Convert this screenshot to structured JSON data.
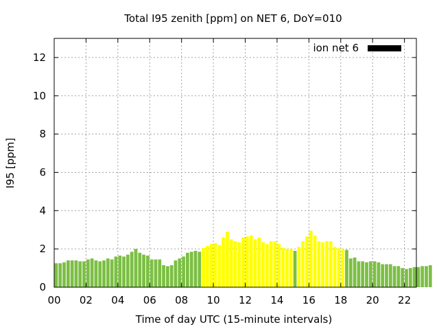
{
  "chart_data": {
    "type": "bar",
    "title": "Total I95 zenith [ppm] on NET 6, DoY=010",
    "xlabel": "Time of day UTC (15-minute intervals)",
    "ylabel": "I95 [ppm]",
    "xlim": [
      0,
      22.75
    ],
    "ylim": [
      0,
      13
    ],
    "x_ticks": [
      "00",
      "02",
      "04",
      "06",
      "08",
      "10",
      "12",
      "14",
      "16",
      "18",
      "20",
      "22"
    ],
    "y_ticks": [
      "0",
      "2",
      "4",
      "6",
      "8",
      "10",
      "12"
    ],
    "grid": true,
    "legend": {
      "position": "top-right",
      "label": "ion net 6",
      "color": "#000000"
    },
    "colors": {
      "green": "#7cbf44",
      "yellow": "#ffff00"
    },
    "series": [
      {
        "values": [
          1.25,
          1.25,
          1.3,
          1.4,
          1.4,
          1.4,
          1.35,
          1.35,
          1.45,
          1.5,
          1.4,
          1.35,
          1.4,
          1.5,
          1.45,
          1.6,
          1.65,
          1.6,
          1.7,
          1.85,
          2.0,
          1.8,
          1.7,
          1.65,
          1.45,
          1.45,
          1.45,
          1.15,
          1.1,
          1.15,
          1.4,
          1.5,
          1.6,
          1.8,
          1.85,
          1.9,
          1.85,
          2.05,
          2.15,
          2.25,
          2.3,
          2.2,
          2.6,
          2.9,
          2.5,
          2.4,
          2.35,
          2.6,
          2.65,
          2.7,
          2.5,
          2.6,
          2.35,
          2.25,
          2.4,
          2.4,
          2.25,
          2.05,
          2.0,
          2.0,
          1.9,
          2.1,
          2.4,
          2.65,
          2.95,
          2.7,
          2.4,
          2.35,
          2.4,
          2.4,
          2.1,
          2.05,
          2.0,
          1.95,
          1.5,
          1.55,
          1.35,
          1.35,
          1.3,
          1.35,
          1.35,
          1.3,
          1.2,
          1.2,
          1.2,
          1.1,
          1.1,
          1.0,
          0.95,
          1.0,
          1.05,
          1.05,
          1.1,
          1.1,
          1.15
        ],
        "colors": [
          "green",
          "green",
          "green",
          "green",
          "green",
          "green",
          "green",
          "green",
          "green",
          "green",
          "green",
          "green",
          "green",
          "green",
          "green",
          "green",
          "green",
          "green",
          "green",
          "green",
          "green",
          "green",
          "green",
          "green",
          "green",
          "green",
          "green",
          "green",
          "green",
          "green",
          "green",
          "green",
          "green",
          "green",
          "green",
          "green",
          "green",
          "yellow",
          "yellow",
          "yellow",
          "yellow",
          "yellow",
          "yellow",
          "yellow",
          "yellow",
          "yellow",
          "yellow",
          "yellow",
          "yellow",
          "yellow",
          "yellow",
          "yellow",
          "yellow",
          "yellow",
          "yellow",
          "yellow",
          "yellow",
          "yellow",
          "yellow",
          "yellow",
          "green",
          "yellow",
          "yellow",
          "yellow",
          "yellow",
          "yellow",
          "yellow",
          "yellow",
          "yellow",
          "yellow",
          "yellow",
          "yellow",
          "yellow",
          "green",
          "green",
          "green",
          "green",
          "green",
          "green",
          "green",
          "green",
          "green",
          "green",
          "green",
          "green",
          "green",
          "green",
          "green",
          "green",
          "green",
          "green",
          "green",
          "green",
          "green",
          "green"
        ]
      }
    ]
  }
}
